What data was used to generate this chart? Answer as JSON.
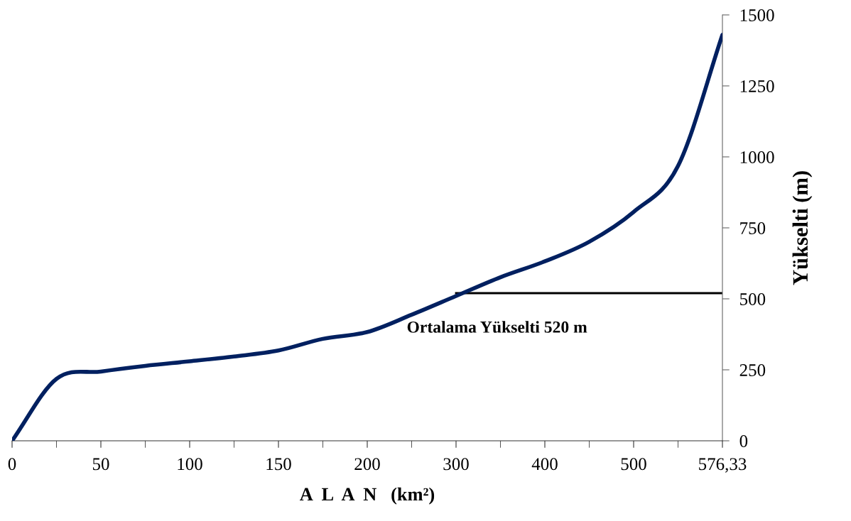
{
  "chart_data": {
    "type": "line",
    "xlabel": "A  L  A  N   (km²)",
    "ylabel": "Yükselti (m)",
    "categories": [
      "0",
      null,
      "50",
      null,
      "100",
      null,
      "150",
      null,
      "200",
      null,
      "300",
      null,
      "400",
      null,
      "500",
      null,
      "576,33"
    ],
    "series": [
      {
        "color": "#002060",
        "values": [
          0,
          218,
          244,
          264,
          280,
          297,
          318,
          359,
          383,
          444,
          510,
          576,
          632,
          701,
          806,
          968,
          1430
        ]
      },
      {
        "color": "#000000",
        "type": "line",
        "values": [
          null,
          null,
          null,
          null,
          null,
          null,
          null,
          null,
          null,
          null,
          520,
          520,
          520,
          520,
          520,
          520,
          520
        ]
      }
    ],
    "annotations": [
      {
        "text": "Ortalama Yükselti 520 m",
        "x": "300",
        "y": 520
      }
    ],
    "ylim": [
      0,
      1500
    ],
    "yticks": [
      0,
      250,
      500,
      750,
      1000,
      1250,
      1500
    ],
    "grid": false,
    "legend": false,
    "marker": "none",
    "line_style": "solid"
  }
}
